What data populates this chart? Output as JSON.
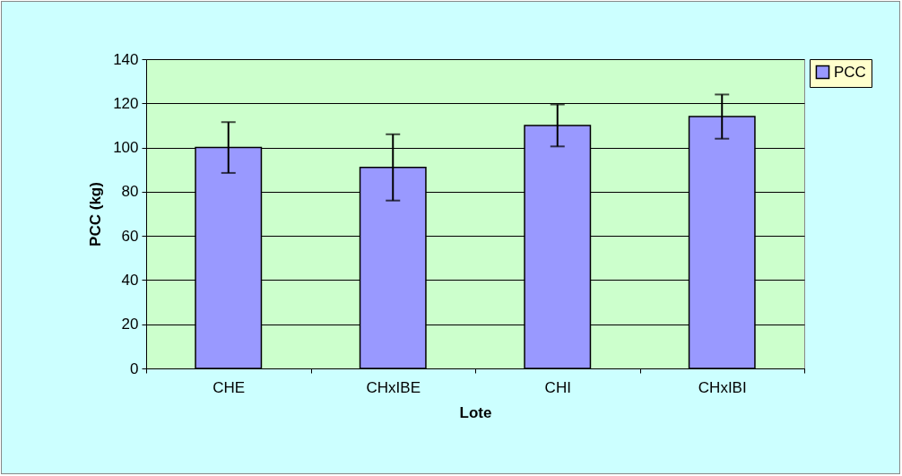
{
  "chart_data": {
    "type": "bar",
    "xlabel": "Lote",
    "ylabel": "PCC (kg)",
    "categories": [
      "CHE",
      "CHxIBE",
      "CHI",
      "CHxIBI"
    ],
    "series": [
      {
        "name": "PCC",
        "color": "#9999ff",
        "values": [
          100,
          91,
          110,
          114
        ],
        "errors": [
          11.5,
          15,
          9.5,
          10
        ]
      }
    ],
    "ylim": [
      0,
      140
    ],
    "yticks": [
      0,
      20,
      40,
      60,
      80,
      100,
      120,
      140
    ],
    "grid": "y",
    "legend": "right"
  }
}
